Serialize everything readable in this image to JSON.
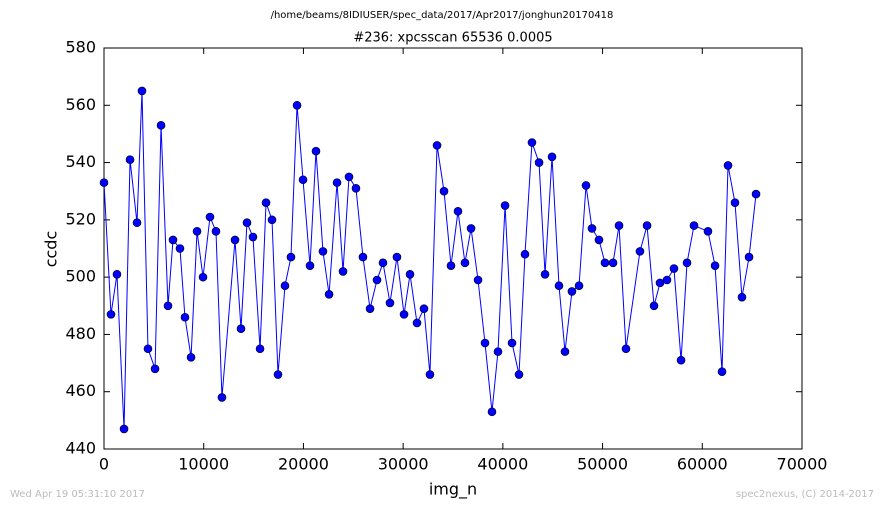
{
  "chart_data": {
    "type": "line",
    "suptitle": "/home/beams/8IDIUSER/spec_data/2017/Apr2017/jonghun20170418",
    "title": "#236: xpcsscan 65536 0.0005",
    "xlabel": "img_n",
    "ylabel": "ccdc",
    "footer_left": "Wed Apr 19 05:31:10 2017",
    "footer_right": "spec2nexus, (C) 2014-2017",
    "xlim": [
      0,
      70000
    ],
    "xticks": [
      0,
      10000,
      20000,
      30000,
      40000,
      50000,
      60000,
      70000
    ],
    "ylim": [
      440,
      580
    ],
    "yticks": [
      440,
      460,
      480,
      500,
      520,
      540,
      560,
      580
    ],
    "grid": false,
    "x": [
      0,
      700,
      1300,
      2010,
      2610,
      3310,
      3810,
      4410,
      5120,
      5720,
      6420,
      6920,
      7620,
      8120,
      8730,
      9330,
      9930,
      10630,
      11230,
      11830,
      13140,
      13740,
      14340,
      14940,
      15650,
      16250,
      16850,
      17450,
      18150,
      18750,
      19360,
      19960,
      20660,
      21260,
      21960,
      22570,
      23370,
      23970,
      24570,
      25270,
      25970,
      26680,
      27380,
      27980,
      28680,
      29380,
      30090,
      30690,
      31390,
      32090,
      32690,
      33400,
      34100,
      34800,
      35500,
      36200,
      36810,
      37510,
      38210,
      38910,
      39510,
      40220,
      40920,
      41620,
      42220,
      42920,
      43630,
      44230,
      44930,
      45630,
      46230,
      46930,
      47640,
      48340,
      48940,
      49640,
      50240,
      51050,
      51650,
      52350,
      53750,
      54460,
      55160,
      55760,
      56460,
      57160,
      57870,
      58470,
      59170,
      60570,
      61280,
      61980,
      62580,
      63280,
      63980,
      64690,
      65390
    ],
    "series": [
      {
        "name": "ccdc",
        "color": "#0000ff",
        "values": [
          533,
          487,
          501,
          447,
          541,
          519,
          565,
          475,
          468,
          553,
          490,
          513,
          510,
          486,
          472,
          516,
          500,
          521,
          516,
          458,
          513,
          482,
          519,
          514,
          475,
          526,
          520,
          466,
          497,
          507,
          560,
          534,
          504,
          544,
          509,
          494,
          533,
          502,
          535,
          531,
          507,
          489,
          499,
          505,
          491,
          507,
          487,
          501,
          484,
          489,
          466,
          546,
          530,
          504,
          523,
          505,
          517,
          499,
          477,
          453,
          474,
          525,
          477,
          466,
          508,
          547,
          540,
          501,
          542,
          497,
          474,
          495,
          497,
          532,
          517,
          513,
          505,
          505,
          518,
          475,
          509,
          518,
          490,
          498,
          499,
          503,
          471,
          505,
          518,
          516,
          504,
          467,
          539,
          526,
          493,
          507,
          529
        ]
      }
    ]
  }
}
